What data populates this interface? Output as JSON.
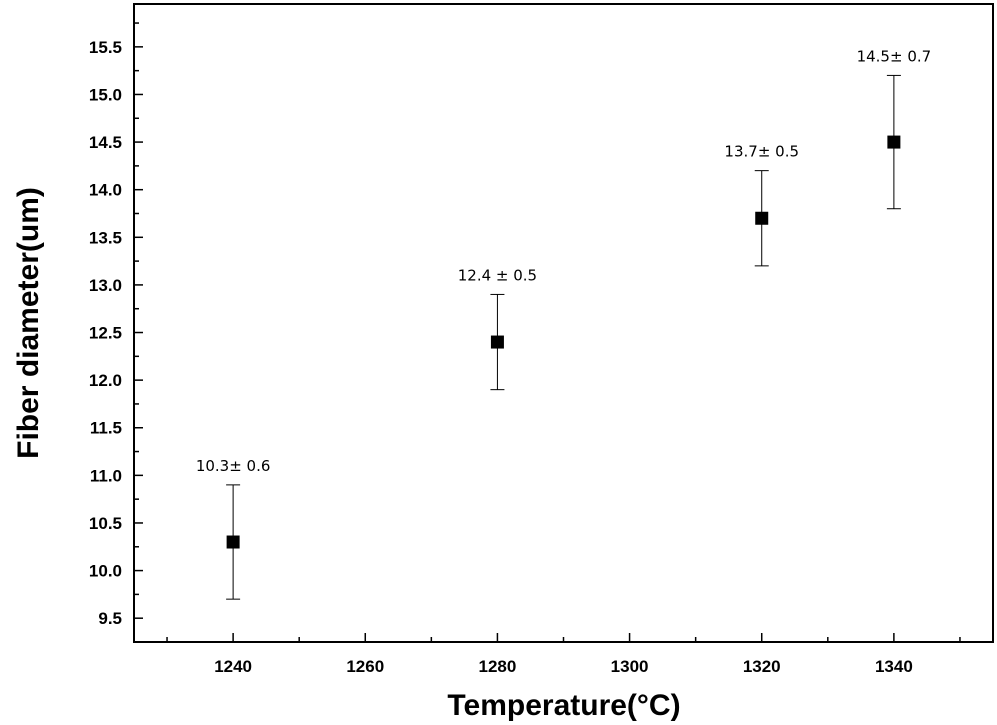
{
  "chart_data": {
    "type": "scatter",
    "title": "",
    "xlabel": "Temperature(°C)",
    "ylabel": "Fiber diameter(um)",
    "xlim": [
      1225,
      1355
    ],
    "ylim": [
      9.25,
      15.95
    ],
    "x_ticks_major": [
      1240,
      1260,
      1280,
      1300,
      1320,
      1340
    ],
    "x_tick_labels": [
      "1240",
      "1260",
      "1280",
      "1300",
      "1320",
      "1340"
    ],
    "y_ticks_major": [
      9.5,
      10.0,
      10.5,
      11.0,
      11.5,
      12.0,
      12.5,
      13.0,
      13.5,
      14.0,
      14.5,
      15.0,
      15.5
    ],
    "y_tick_labels": [
      "9.5",
      "10.0",
      "10.5",
      "11.0",
      "11.5",
      "12.0",
      "12.5",
      "13.0",
      "13.5",
      "14.0",
      "14.5",
      "15.0",
      "15.5"
    ],
    "grid": false,
    "legend": "none",
    "marker": "square",
    "marker_color": "#000000",
    "points": [
      {
        "x": 1240,
        "y": 10.3,
        "err": 0.6,
        "label": "10.3± 0.6"
      },
      {
        "x": 1280,
        "y": 12.4,
        "err": 0.5,
        "label": "12.4 ± 0.5"
      },
      {
        "x": 1320,
        "y": 13.7,
        "err": 0.5,
        "label": "13.7± 0.5"
      },
      {
        "x": 1340,
        "y": 14.5,
        "err": 0.7,
        "label": "14.5± 0.7"
      }
    ]
  }
}
